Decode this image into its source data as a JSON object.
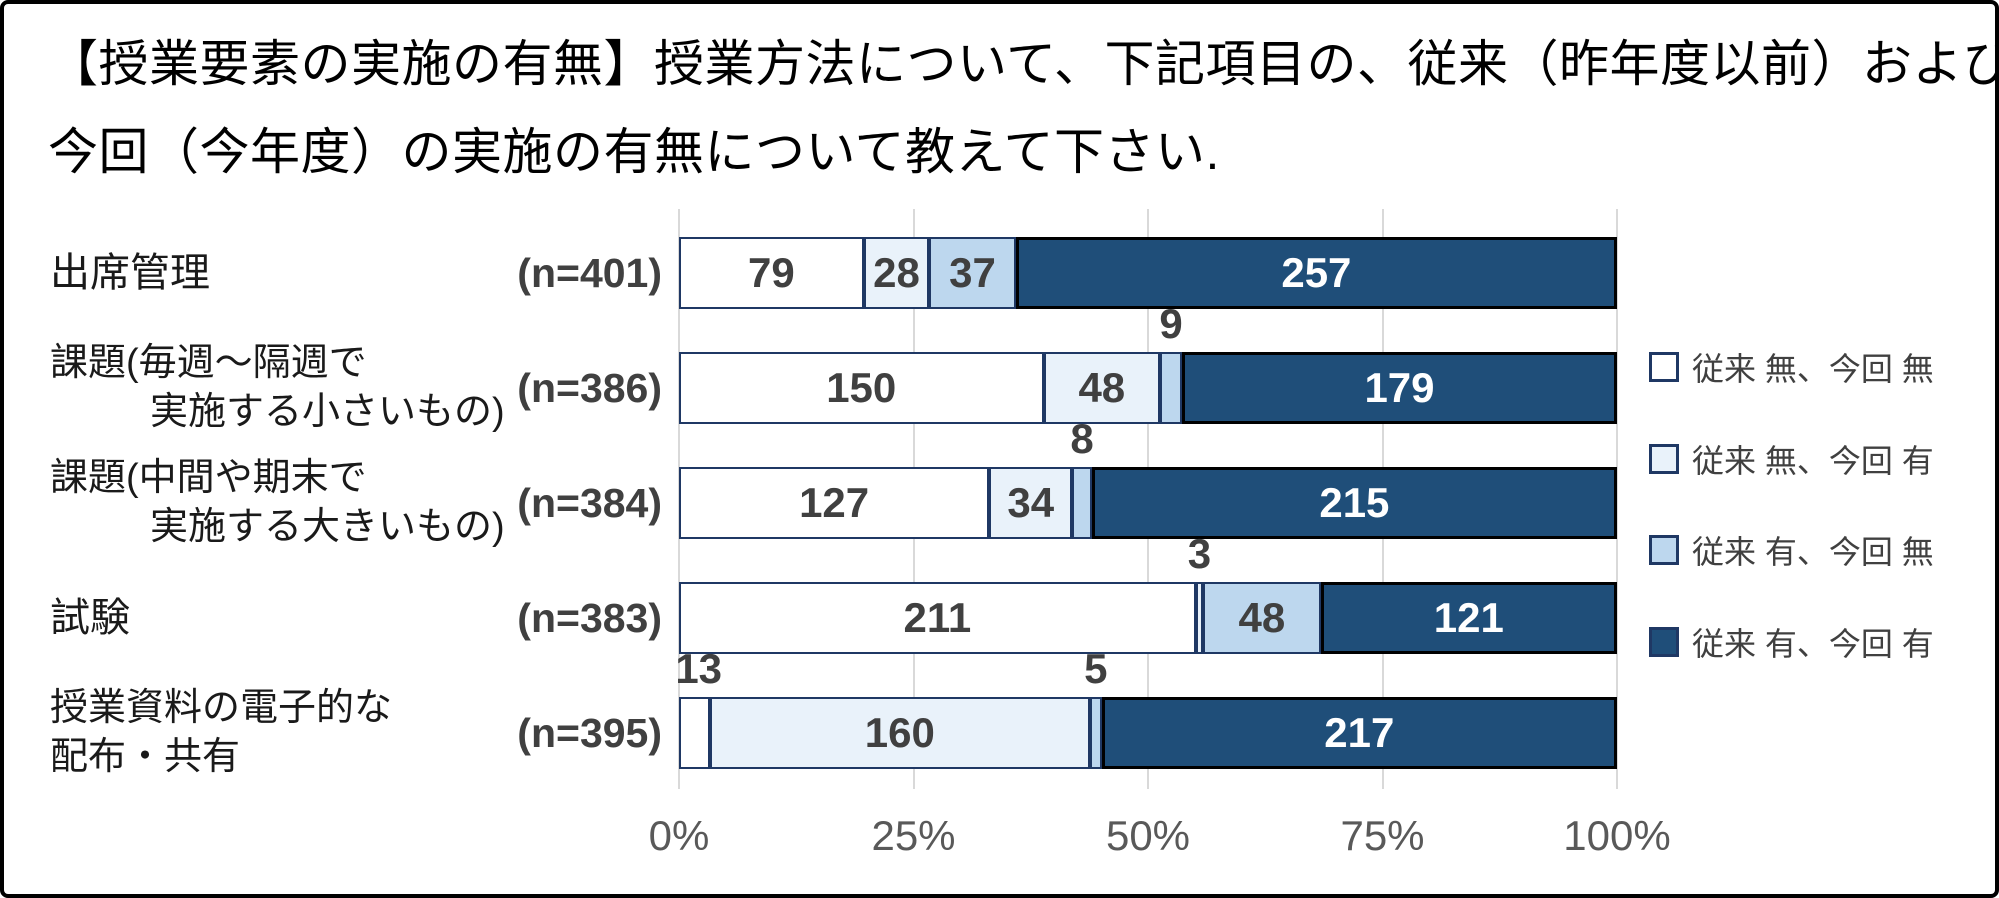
{
  "title": {
    "line1": "【授業要素の実施の有無】授業方法について、下記項目の、従来（昨年度以前）および",
    "line2": "今回（今年度）の実施の有無について教えて下さい."
  },
  "chart_data": {
    "type": "bar",
    "orientation": "horizontal",
    "stacked": true,
    "stack_mode": "percent_of_row_total",
    "x_axis": {
      "ticks": [
        "0%",
        "25%",
        "50%",
        "75%",
        "100%"
      ],
      "range_percent": [
        0,
        100
      ],
      "grid": true
    },
    "series": [
      {
        "name": "従来 無、今回 無",
        "color": "#FFFFFF",
        "border": "#1F3864"
      },
      {
        "name": "従来 無、今回 有",
        "color": "#E9F2FA",
        "border": "#1F3864"
      },
      {
        "name": "従来 有、今回 無",
        "color": "#BDD7EE",
        "border": "#1F3864"
      },
      {
        "name": "従来 有、今回 有",
        "color": "#1F4E79",
        "border": "#000000"
      }
    ],
    "rows": [
      {
        "category_lines": [
          "出席管理"
        ],
        "n_label": "(n=401)",
        "total": 401,
        "values": [
          79,
          28,
          37,
          257
        ],
        "label_placement": [
          "inside",
          "inside",
          "inside",
          "inside"
        ]
      },
      {
        "category_lines": [
          "課題(毎週～隔週で",
          "実施する小さいもの)"
        ],
        "n_label": "(n=386)",
        "total": 386,
        "values": [
          150,
          48,
          9,
          179
        ],
        "label_placement": [
          "inside",
          "inside",
          "above",
          "inside"
        ]
      },
      {
        "category_lines": [
          "課題(中間や期末で",
          "実施する大きいもの)"
        ],
        "n_label": "(n=384)",
        "total": 384,
        "values": [
          127,
          34,
          8,
          215
        ],
        "label_placement": [
          "inside",
          "inside",
          "above",
          "inside"
        ]
      },
      {
        "category_lines": [
          "試験"
        ],
        "n_label": "(n=383)",
        "total": 383,
        "values": [
          211,
          3,
          48,
          121
        ],
        "label_placement": [
          "inside",
          "above",
          "inside",
          "inside"
        ]
      },
      {
        "category_lines": [
          "授業資料の電子的な",
          "配布・共有"
        ],
        "n_label": "(n=395)",
        "total": 395,
        "values": [
          13,
          160,
          5,
          217
        ],
        "label_placement": [
          "above",
          "inside",
          "above",
          "inside"
        ]
      }
    ],
    "legend": {
      "position": "right",
      "items": [
        "従来 無、今回 無",
        "従来 無、今回 有",
        "従来 有、今回 無",
        "従来 有、今回 有"
      ]
    }
  },
  "colors": {
    "grid": "#D9D9D9",
    "axis_text": "#595959",
    "value_text": "#404040",
    "value_text_on_dark": "#FFFFFF",
    "category_text": "#1A1A1A",
    "frame_border": "#000000"
  }
}
